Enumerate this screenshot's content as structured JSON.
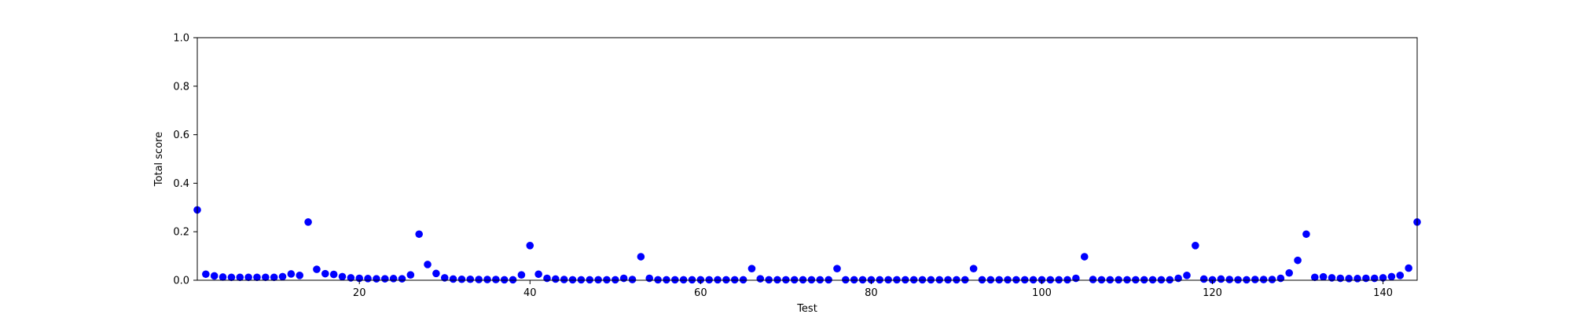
{
  "chart_data": {
    "type": "scatter",
    "title": "",
    "xlabel": "Test",
    "ylabel": "Total score",
    "xlim": [
      1,
      144
    ],
    "ylim": [
      0.0,
      1.0
    ],
    "xticks": [
      20,
      40,
      60,
      80,
      100,
      120,
      140
    ],
    "xtick_labels": [
      "20",
      "40",
      "60",
      "80",
      "100",
      "120",
      "140"
    ],
    "yticks": [
      0.0,
      0.2,
      0.4,
      0.6,
      0.8,
      1.0
    ],
    "ytick_labels": [
      "0.0",
      "0.2",
      "0.4",
      "0.6",
      "0.8",
      "1.0"
    ],
    "grid": false,
    "legend": "none",
    "marker_color": "#0000ff",
    "series": [
      {
        "x": [
          1,
          2,
          3,
          4,
          5,
          6,
          7,
          8,
          9,
          10,
          11,
          12,
          13,
          14,
          15,
          16,
          17,
          18,
          19,
          20,
          21,
          22,
          23,
          24,
          25,
          26,
          27,
          28,
          29,
          30,
          31,
          32,
          33,
          34,
          35,
          36,
          37,
          38,
          39,
          40,
          41,
          42,
          43,
          44,
          45,
          46,
          47,
          48,
          49,
          50,
          51,
          52,
          53,
          54,
          55,
          56,
          57,
          58,
          59,
          60,
          61,
          62,
          63,
          64,
          65,
          66,
          67,
          68,
          69,
          70,
          71,
          72,
          73,
          74,
          75,
          76,
          77,
          78,
          79,
          80,
          81,
          82,
          83,
          84,
          85,
          86,
          87,
          88,
          89,
          90,
          91,
          92,
          93,
          94,
          95,
          96,
          97,
          98,
          99,
          100,
          101,
          102,
          103,
          104,
          105,
          106,
          107,
          108,
          109,
          110,
          111,
          112,
          113,
          114,
          115,
          116,
          117,
          118,
          119,
          120,
          121,
          122,
          123,
          124,
          125,
          126,
          127,
          128,
          129,
          130,
          131,
          132,
          133,
          134,
          135,
          136,
          137,
          138,
          139,
          140,
          141,
          142,
          143,
          144
        ],
        "y": [
          0.29,
          0.025,
          0.018,
          0.013,
          0.012,
          0.012,
          0.012,
          0.012,
          0.012,
          0.012,
          0.015,
          0.026,
          0.02,
          0.24,
          0.045,
          0.027,
          0.024,
          0.015,
          0.01,
          0.008,
          0.007,
          0.006,
          0.006,
          0.007,
          0.006,
          0.022,
          0.19,
          0.065,
          0.028,
          0.01,
          0.005,
          0.004,
          0.004,
          0.003,
          0.003,
          0.003,
          0.002,
          0.002,
          0.022,
          0.143,
          0.025,
          0.008,
          0.005,
          0.003,
          0.002,
          0.002,
          0.002,
          0.002,
          0.002,
          0.002,
          0.008,
          0.003,
          0.097,
          0.008,
          0.002,
          0.002,
          0.002,
          0.002,
          0.002,
          0.002,
          0.002,
          0.002,
          0.002,
          0.002,
          0.002,
          0.048,
          0.006,
          0.002,
          0.002,
          0.002,
          0.002,
          0.002,
          0.002,
          0.002,
          0.002,
          0.048,
          0.002,
          0.002,
          0.002,
          0.002,
          0.002,
          0.002,
          0.002,
          0.002,
          0.002,
          0.002,
          0.002,
          0.002,
          0.002,
          0.002,
          0.002,
          0.048,
          0.002,
          0.002,
          0.002,
          0.002,
          0.002,
          0.002,
          0.002,
          0.002,
          0.002,
          0.002,
          0.002,
          0.008,
          0.097,
          0.003,
          0.002,
          0.002,
          0.002,
          0.002,
          0.002,
          0.002,
          0.002,
          0.002,
          0.002,
          0.008,
          0.02,
          0.143,
          0.005,
          0.002,
          0.005,
          0.003,
          0.002,
          0.002,
          0.003,
          0.003,
          0.003,
          0.008,
          0.03,
          0.082,
          0.19,
          0.012,
          0.014,
          0.01,
          0.008,
          0.007,
          0.007,
          0.008,
          0.008,
          0.01,
          0.015,
          0.02,
          0.05,
          0.24
        ]
      }
    ]
  }
}
